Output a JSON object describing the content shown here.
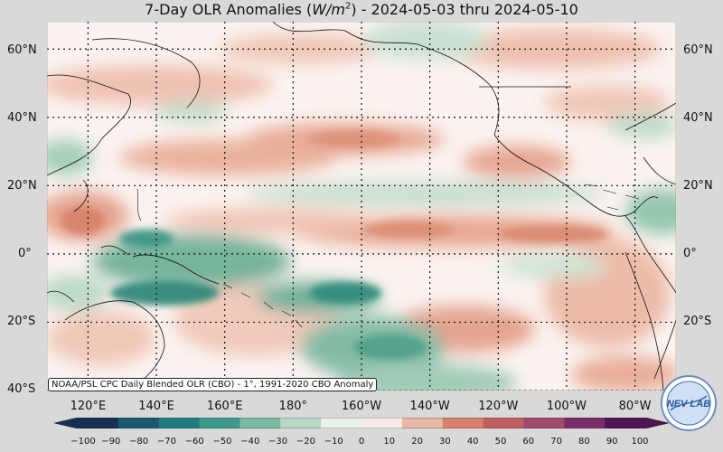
{
  "title": {
    "prefix": "7-Day OLR Anomalies (",
    "unit_base": "W/m",
    "unit_exp": "2",
    "suffix": ") - 2024-05-03 thru 2024-05-10"
  },
  "map": {
    "lat_labels": [
      "60°N",
      "40°N",
      "20°N",
      "0°",
      "20°S",
      "40°S"
    ],
    "lat_values": [
      60,
      40,
      20,
      0,
      -20,
      -40
    ],
    "lon_labels": [
      "120°E",
      "140°E",
      "160°E",
      "180°",
      "160°W",
      "140°W",
      "120°W",
      "100°W",
      "80°W"
    ],
    "lon_values": [
      120,
      140,
      160,
      180,
      200,
      220,
      240,
      260,
      280
    ],
    "lat_range": [
      -40,
      68
    ],
    "lon_range": [
      108,
      292
    ],
    "gridlines": true
  },
  "credit": "NOAA/PSL CPC Daily Blended OLR (CBO) - 1°, 1991-2020 CBO Anomaly",
  "colorbar": {
    "ticks": [
      "−100",
      "−90",
      "−80",
      "−70",
      "−60",
      "−50",
      "−40",
      "−30",
      "−20",
      "−10",
      "0",
      "10",
      "20",
      "30",
      "40",
      "50",
      "60",
      "70",
      "80",
      "90",
      "100"
    ],
    "range": [
      -100,
      100
    ],
    "colors": [
      "#162f52",
      "#1b5a6e",
      "#1e7d80",
      "#3f9a8c",
      "#7ab9a3",
      "#b6d8c4",
      "#eaf2ec",
      "#f7ede8",
      "#e9b7a3",
      "#d8826a",
      "#c45e60",
      "#a14a6c",
      "#7b2b6b",
      "#4e1552"
    ]
  },
  "logo": {
    "text": "NEV LAB"
  },
  "colors": {
    "neutral": "#fbf3f0",
    "positive": "#e4a18b",
    "negative": "#5fa98e",
    "land_line": "#111111",
    "background": "#d9d9d9"
  }
}
